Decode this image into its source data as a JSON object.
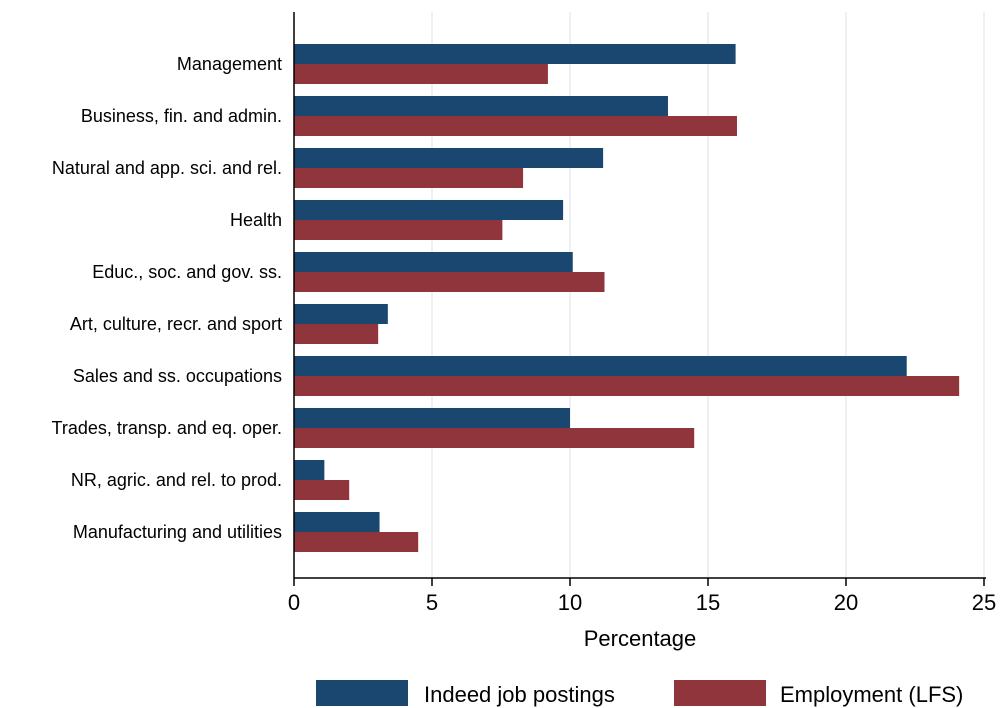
{
  "chart_data": {
    "type": "bar",
    "orientation": "horizontal",
    "categories": [
      "Management",
      "Business, fin. and admin.",
      "Natural and app. sci. and rel.",
      "Health",
      "Educ., soc. and gov. ss.",
      "Art, culture, recr. and sport",
      "Sales and ss. occupations",
      "Trades, transp. and eq. oper.",
      "NR, agric. and rel. to prod.",
      "Manufacturing and utilities"
    ],
    "series": [
      {
        "name": "Indeed job postings",
        "color": "#1a476f",
        "values": [
          16.0,
          13.55,
          11.2,
          9.75,
          10.1,
          3.4,
          22.2,
          10.0,
          1.1,
          3.1
        ]
      },
      {
        "name": "Employment (LFS)",
        "color": "#90353b",
        "values": [
          9.2,
          16.05,
          8.3,
          7.55,
          11.25,
          3.05,
          24.1,
          14.5,
          2.0,
          4.5
        ]
      }
    ],
    "xlabel": "Percentage",
    "ylabel": "",
    "xlim": [
      0,
      25
    ],
    "xticks": [
      0,
      5,
      10,
      15,
      20,
      25
    ],
    "grid": true,
    "legend_position": "bottom"
  }
}
